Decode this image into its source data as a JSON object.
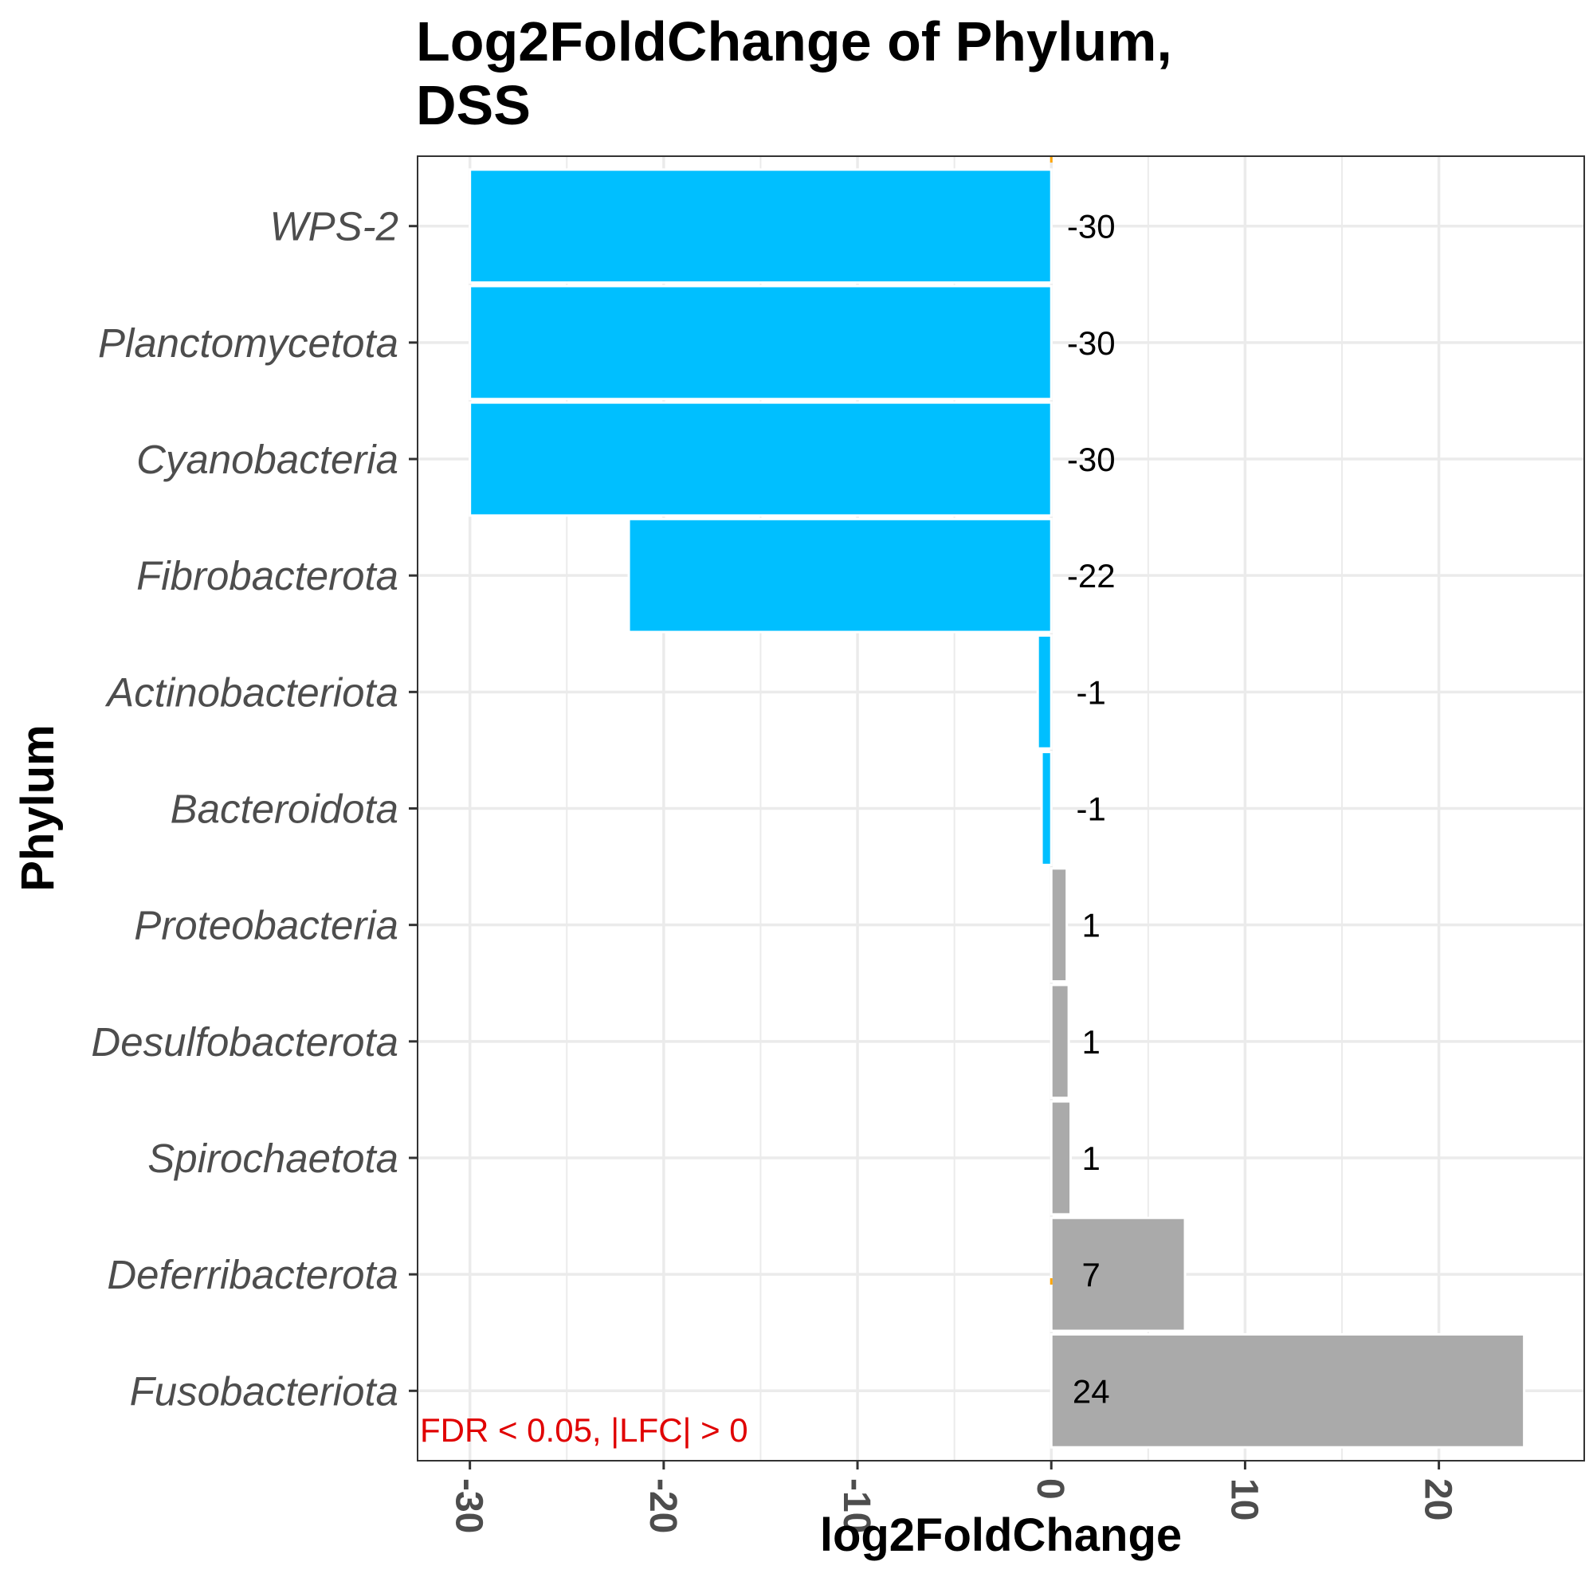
{
  "chart_data": {
    "type": "bar",
    "orientation": "horizontal",
    "title_lines": [
      "Log2FoldChange of Phylum,",
      "DSS"
    ],
    "xlabel": "log2FoldChange",
    "ylabel": "Phylum",
    "xlim": [
      -32.7,
      27.5
    ],
    "xticks": [
      -30,
      -20,
      -10,
      0,
      10,
      20
    ],
    "xtick_labels": [
      "-30",
      "-20",
      "-10",
      "0",
      "10",
      "20"
    ],
    "grid": true,
    "categories": [
      "WPS-2",
      "Planctomycetota",
      "Cyanobacteria",
      "Fibrobacterota",
      "Actinobacteriota",
      "Bacteroidota",
      "Proteobacteria",
      "Desulfobacterota",
      "Spirochaetota",
      "Deferribacterota",
      "Fusobacteriota"
    ],
    "values": [
      -30,
      -30,
      -30,
      -21.8,
      -0.7,
      -0.5,
      0.8,
      0.9,
      1.0,
      6.9,
      24.4
    ],
    "value_labels": [
      "-30",
      "-30",
      "-30",
      "-22",
      "-1",
      "-1",
      "1",
      "1",
      "1",
      "7",
      "24"
    ],
    "colors": {
      "negative": "#00bfff",
      "positive": "#aaaaaa",
      "zero_line": "#ffa500",
      "note": "#e00000"
    },
    "annotation": "FDR < 0.05, |LFC| > 0"
  }
}
